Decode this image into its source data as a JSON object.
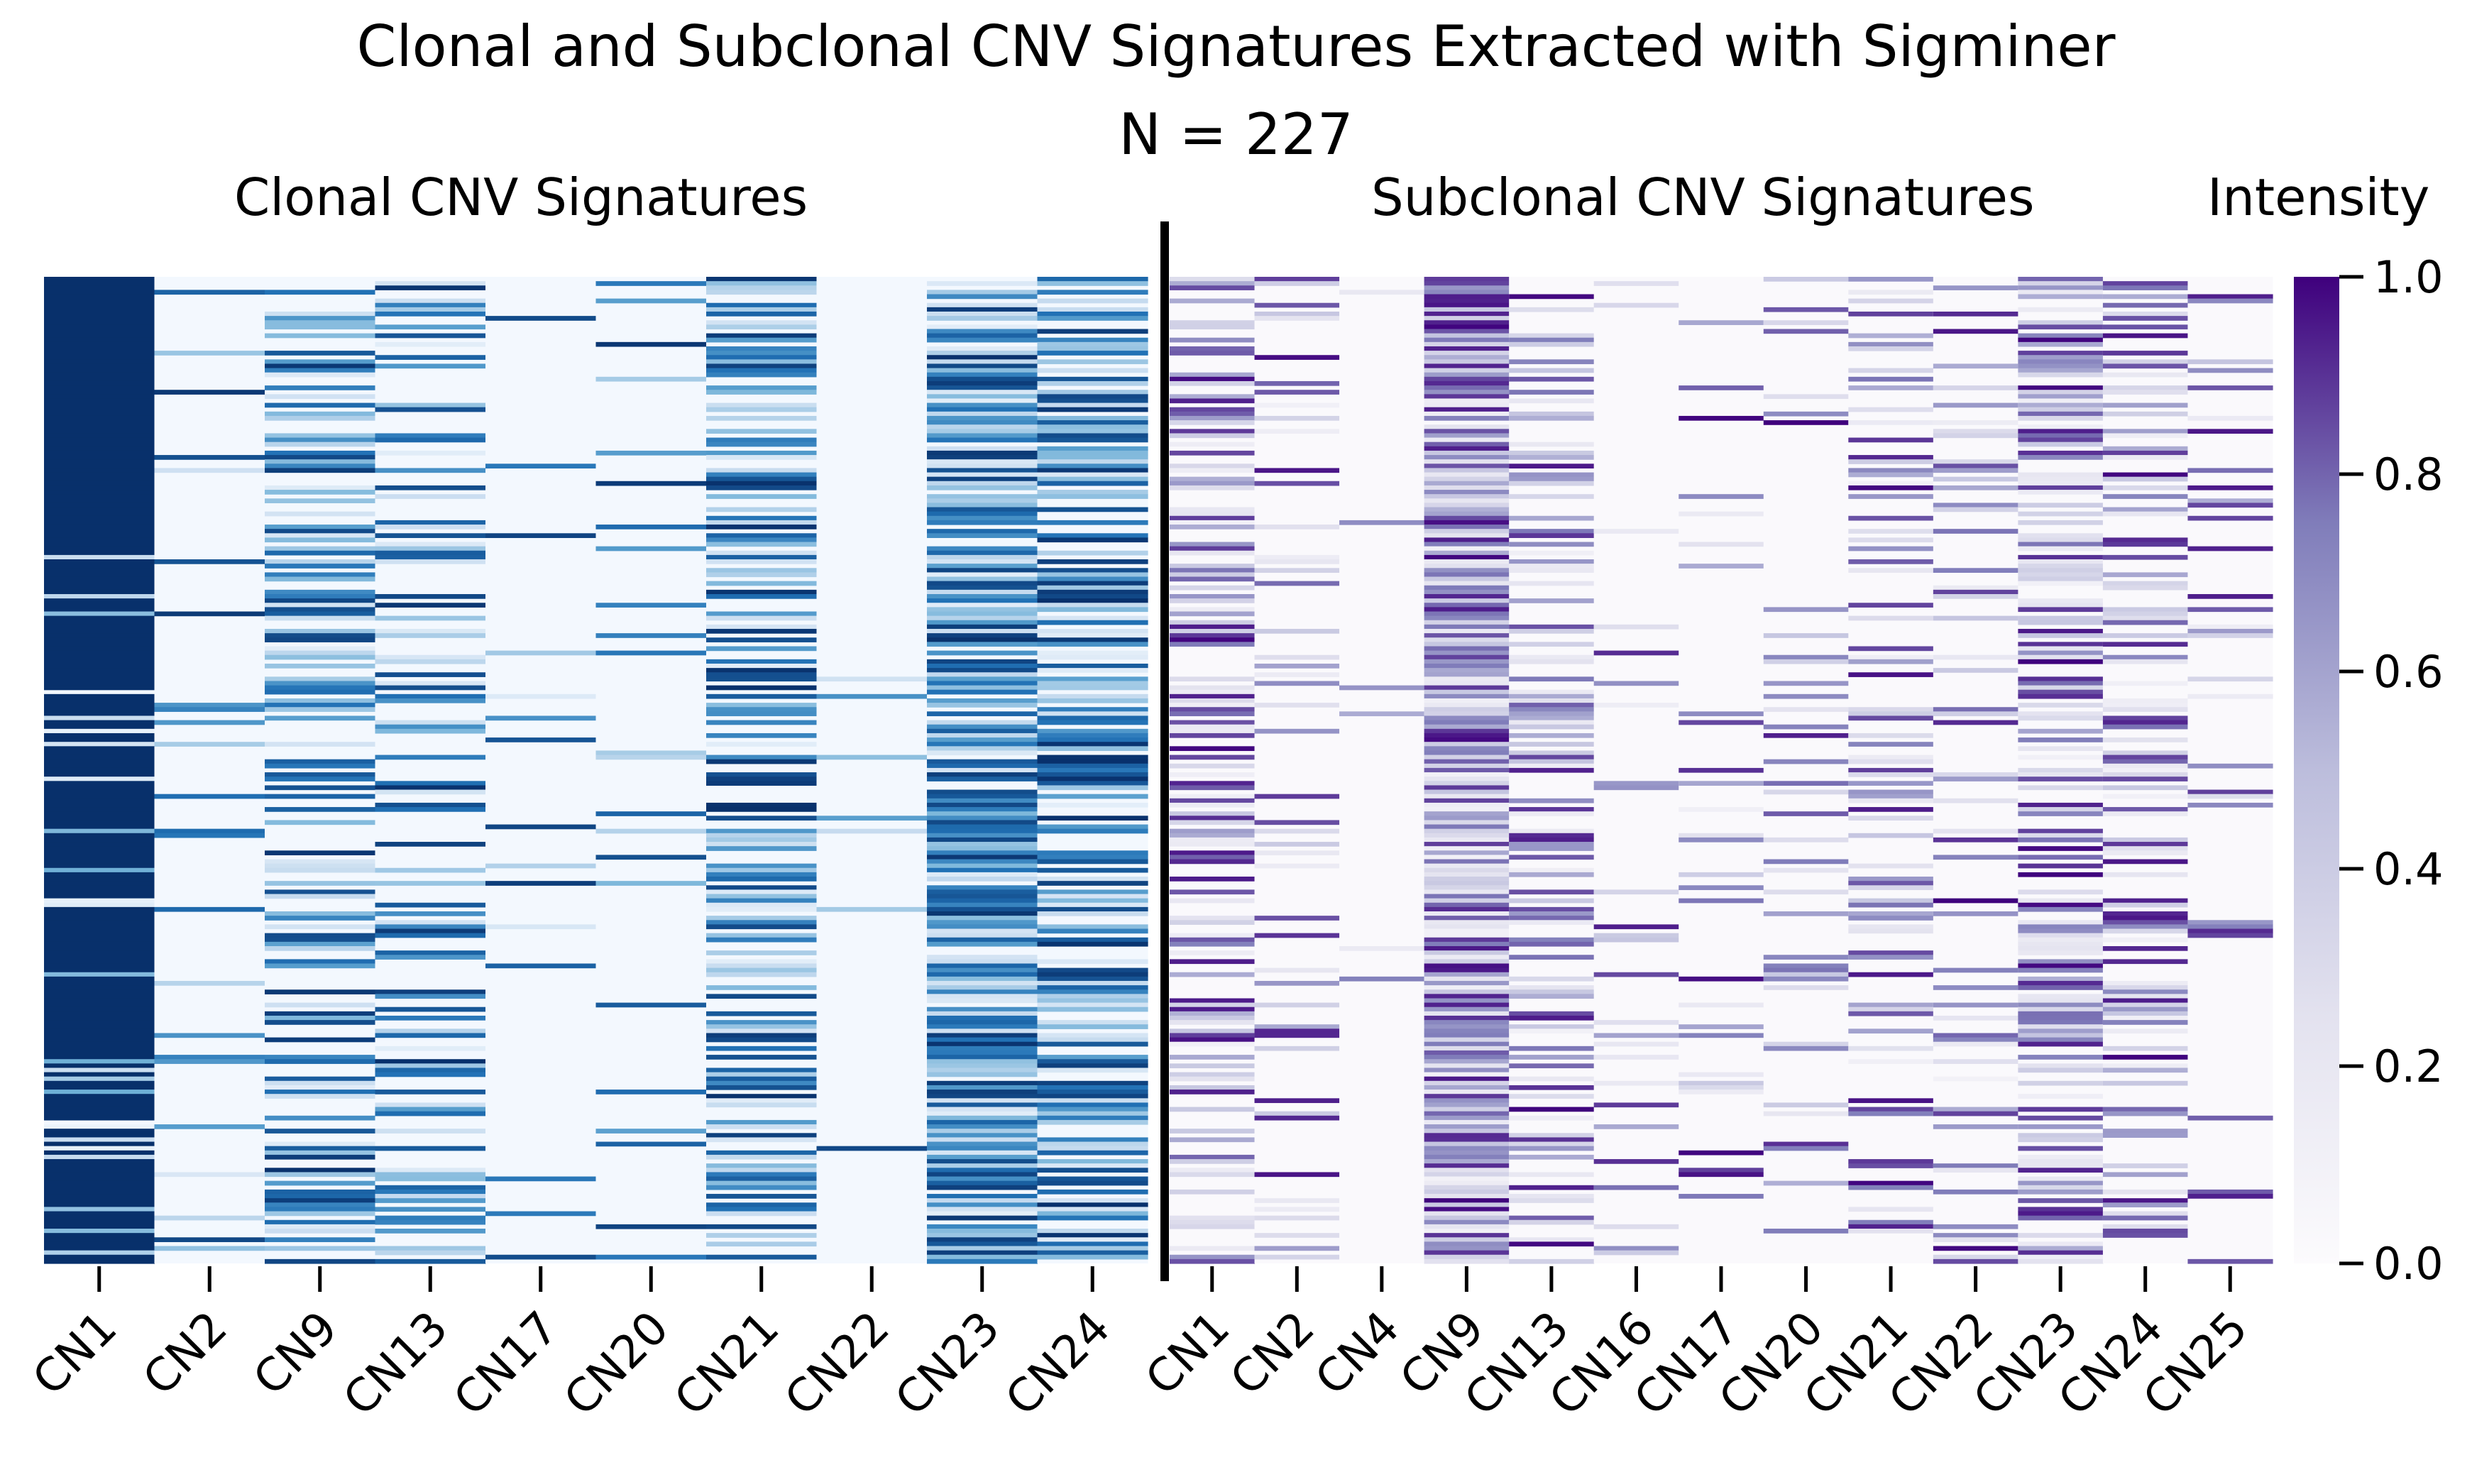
{
  "title": "Clonal and Subclonal CNV Signatures Extracted with Sigminer",
  "subtitle": "N = 227",
  "chart_data": [
    {
      "type": "heatmap",
      "title": "Clonal CNV Signatures",
      "colormap": "Blues",
      "n_rows": 227,
      "columns": [
        "CN1",
        "CN2",
        "CN9",
        "CN13",
        "CN17",
        "CN20",
        "CN21",
        "CN22",
        "CN23",
        "CN24"
      ],
      "column_mean_intensity": [
        0.9,
        0.06,
        0.32,
        0.26,
        0.04,
        0.05,
        0.38,
        0.02,
        0.55,
        0.4
      ],
      "value_range": [
        0.0,
        1.0
      ]
    },
    {
      "type": "heatmap",
      "title": "Subclonal CNV Signatures",
      "colormap": "Purples",
      "n_rows": 227,
      "columns": [
        "CN1",
        "CN2",
        "CN4",
        "CN9",
        "CN13",
        "CN16",
        "CN17",
        "CN20",
        "CN21",
        "CN22",
        "CN23",
        "CN24",
        "CN25"
      ],
      "column_mean_intensity": [
        0.3,
        0.12,
        0.02,
        0.62,
        0.28,
        0.08,
        0.09,
        0.1,
        0.22,
        0.15,
        0.35,
        0.28,
        0.1
      ],
      "value_range": [
        0.0,
        1.0
      ]
    }
  ],
  "colorbar": {
    "label": "Intensity",
    "ticks": [
      "0.0",
      "0.2",
      "0.4",
      "0.6",
      "0.8",
      "1.0"
    ],
    "colormap": "Purples"
  }
}
